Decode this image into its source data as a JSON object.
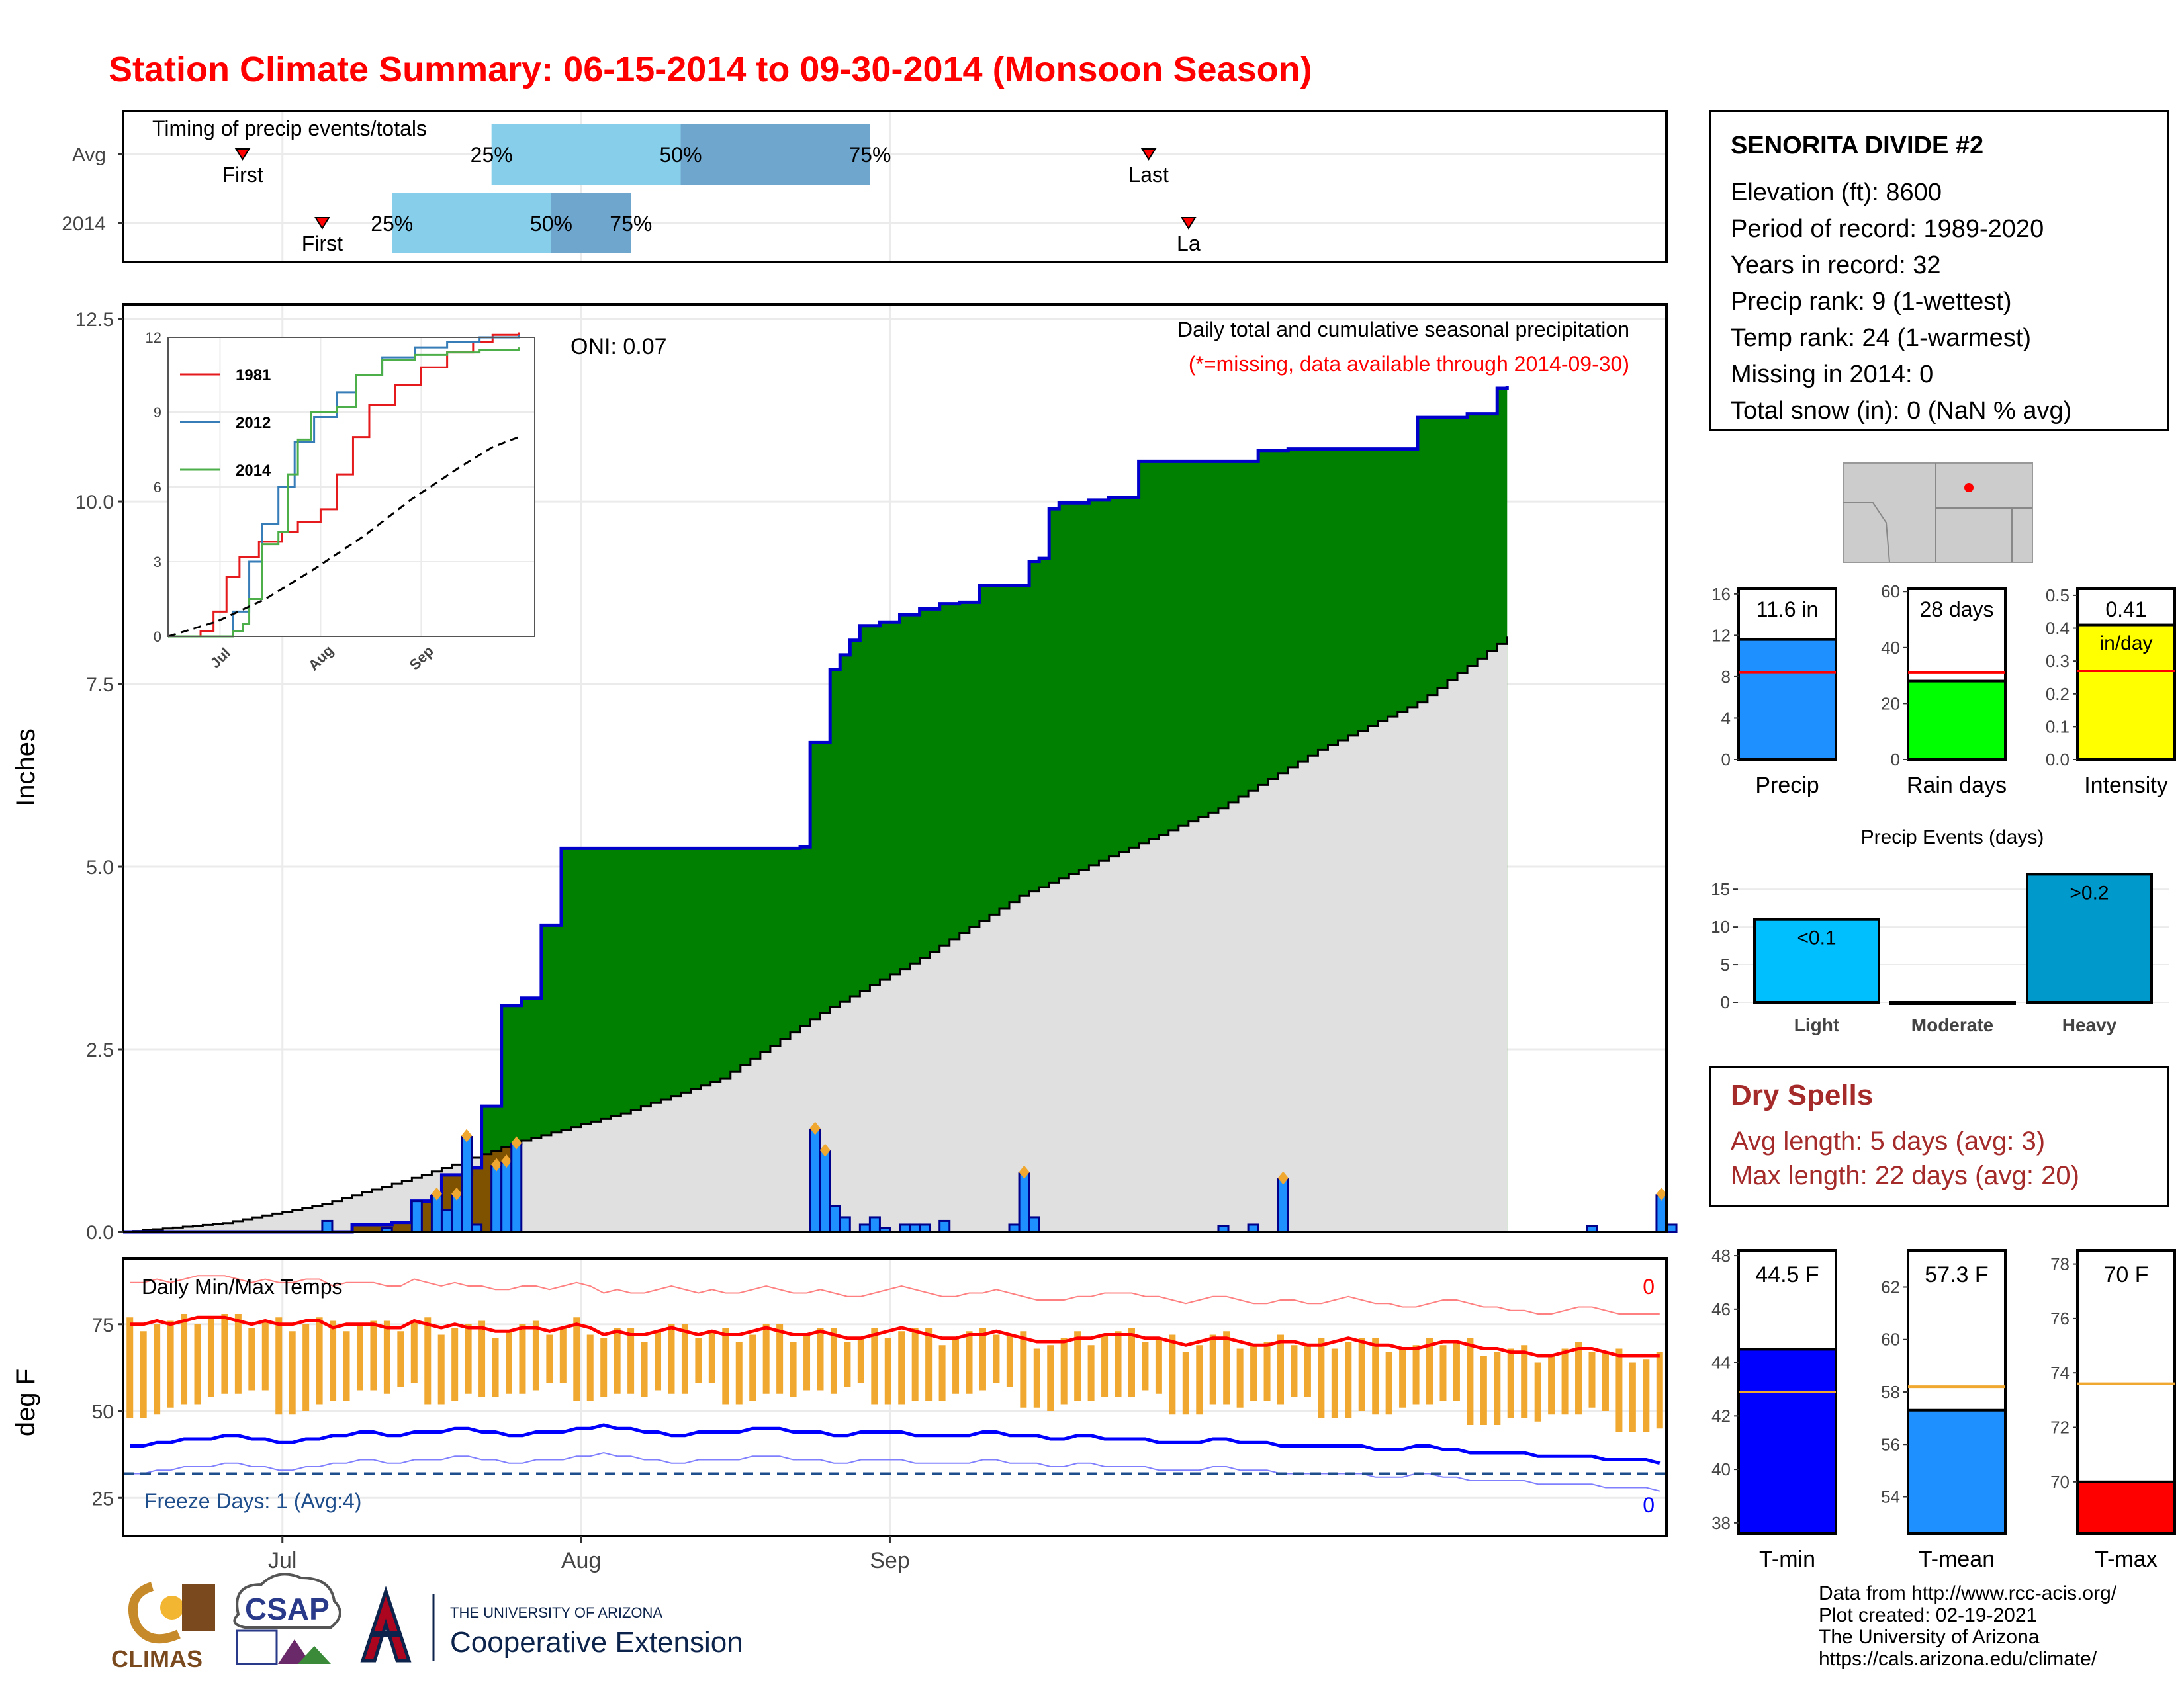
{
  "title": "Station Climate Summary: 06-15-2014 to 09-30-2014 (Monsoon Season)",
  "colors": {
    "title": "#ff0000",
    "precip_bar": "#1e90ff",
    "green_fill": "#008000",
    "brown_fill": "#7f5200",
    "avg_fill": "#e0e0e0",
    "tmin": "#0000ff",
    "tmax": "#ff0000",
    "range_bar": "#f0a830",
    "quartile_light": "#87ceeb",
    "quartile_dark": "#6fa6cd",
    "dry_spell_text": "#a52a2a"
  },
  "timing": {
    "label": "Timing of precip events/totals",
    "rows": [
      {
        "label": "Avg",
        "first_label": "First",
        "last_label": "Last",
        "first_day": 12,
        "last_day": 103,
        "q25_label": "25%",
        "q50_label": "50%",
        "q75_label": "75%",
        "q25_day": 37,
        "q50_day": 56,
        "q75_day": 75
      },
      {
        "label": "2014",
        "first_label": "First",
        "last_label": "La",
        "first_day": 20,
        "last_day": 107,
        "q25_label": "25%",
        "q50_label": "50%",
        "q75_label": "75%",
        "q25_day": 27,
        "q50_day": 43,
        "q75_day": 51
      }
    ]
  },
  "precip_panel": {
    "ylabel": "Inches",
    "oni_label": "ONI: 0.07",
    "desc_line1": "Daily total and cumulative seasonal precipitation",
    "desc_line2": "(*=missing, data available through 2014-09-30)",
    "yticks": [
      "0.0",
      "2.5",
      "5.0",
      "7.5",
      "10.0",
      "12.5"
    ]
  },
  "inset": {
    "yticks": [
      "0",
      "3",
      "6",
      "9",
      "12"
    ],
    "xticks": [
      "Jul",
      "Aug",
      "Sep"
    ],
    "legend": [
      {
        "name": "1981",
        "color": "#e41a1c"
      },
      {
        "name": "2012",
        "color": "#377eb8"
      },
      {
        "name": "2014",
        "color": "#4daf4a"
      }
    ]
  },
  "temp_panel": {
    "ylabel": "deg F",
    "label": "Daily Min/Max Temps",
    "freeze_label": "Freeze Days: 1 (Avg:4)",
    "max_count_label": "0",
    "min_count_label": "0",
    "yticks": [
      "25",
      "50",
      "75"
    ],
    "xticks": [
      "Jul",
      "Aug",
      "Sep"
    ],
    "freeze_line": 32
  },
  "station": {
    "name": "SENORITA DIVIDE #2",
    "lines": [
      "Elevation (ft): 8600",
      "Period of record: 1989-2020",
      "Years in record: 32",
      "Precip rank: 9 (1-wettest)",
      "Temp rank: 24 (1-warmest)",
      "Missing in 2014: 0",
      "Total snow (in): 0 (NaN % avg)"
    ]
  },
  "summary_bars": [
    {
      "xlabel": "Precip",
      "value_label": "11.6 in",
      "value": 11.6,
      "avg": 8.4,
      "ymax": 16.5,
      "ticks": [
        "0",
        "4",
        "8",
        "12",
        "16"
      ],
      "tickvals": [
        0,
        4,
        8,
        12,
        16
      ],
      "color": "#1e90ff"
    },
    {
      "xlabel": "Rain days",
      "value_label": "28 days",
      "value": 28,
      "avg": 31,
      "ymax": 61,
      "ticks": [
        "0",
        "20",
        "40",
        "60"
      ],
      "tickvals": [
        0,
        20,
        40,
        60
      ],
      "color": "#00ff00"
    },
    {
      "xlabel": "Intensity",
      "value_label": "0.41",
      "value_label2": "in/day",
      "value": 0.41,
      "avg": 0.27,
      "ymax": 0.52,
      "ticks": [
        "0.0",
        "0.1",
        "0.2",
        "0.3",
        "0.4",
        "0.5"
      ],
      "tickvals": [
        0,
        0.1,
        0.2,
        0.3,
        0.4,
        0.5
      ],
      "color": "#ffff00"
    }
  ],
  "events": {
    "title": "Precip Events (days)",
    "categories": [
      "Light",
      "Moderate",
      "Heavy"
    ],
    "values": [
      11,
      0,
      17
    ],
    "bar_labels": [
      "<0.1",
      "",
      ">0.2"
    ],
    "colors": [
      "#00bfff",
      "#00bfff",
      "#0099cc"
    ],
    "yticks": [
      "0",
      "5",
      "10",
      "15"
    ]
  },
  "dry_spells": {
    "title": "Dry Spells",
    "avg_line": "Avg length: 5 days (avg: 3)",
    "max_line": "Max length: 22 days (avg: 20)"
  },
  "temp_bars": [
    {
      "xlabel": "T-min",
      "value_label": "44.5 F",
      "value": 44.5,
      "avg": 42.9,
      "ymin": 37.6,
      "ymax": 48.2,
      "ticks": [
        "38",
        "40",
        "42",
        "44",
        "46",
        "48"
      ],
      "tickvals": [
        38,
        40,
        42,
        44,
        46,
        48
      ],
      "color": "#0000ff"
    },
    {
      "xlabel": "T-mean",
      "value_label": "57.3 F",
      "value": 57.3,
      "avg": 58.2,
      "ymin": 52.6,
      "ymax": 63.4,
      "ticks": [
        "54",
        "56",
        "58",
        "60",
        "62"
      ],
      "tickvals": [
        54,
        56,
        58,
        60,
        62
      ],
      "color": "#1e90ff"
    },
    {
      "xlabel": "T-max",
      "value_label": "70 F",
      "value": 70,
      "avg": 73.6,
      "ymin": 68.1,
      "ymax": 78.5,
      "ticks": [
        "70",
        "72",
        "74",
        "76",
        "78"
      ],
      "tickvals": [
        70,
        72,
        74,
        76,
        78
      ],
      "color": "#ff0000"
    }
  ],
  "logos": {
    "climas": "CLIMAS",
    "csap": "CSAP",
    "ua_small": "THE UNIVERSITY OF ARIZONA",
    "ua_big": "Cooperative Extension"
  },
  "credits": [
    "Data from http://www.rcc-acis.org/",
    "Plot created: 02-19-2021",
    "The University of Arizona",
    "https://cals.arizona.edu/climate/"
  ],
  "chart_data": [
    {
      "type": "area",
      "title": "Daily total and cumulative seasonal precipitation",
      "ylabel": "Inches",
      "ylim": [
        0,
        12.7
      ],
      "xlim": [
        "2014-06-15",
        "2014-09-30"
      ],
      "series": [
        {
          "name": "",
          "values": [
            [
              0,
              0
            ],
            [
              20,
              0
            ],
            [
              23,
              0.1
            ],
            [
              27,
              0.13
            ],
            [
              29,
              0.42
            ],
            [
              31,
              0.48
            ],
            [
              32,
              0.78
            ],
            [
              35,
              0.88
            ],
            [
              36,
              1.72
            ],
            [
              38,
              3.1
            ],
            [
              40,
              3.2
            ],
            [
              42,
              4.2
            ],
            [
              44,
              5.25
            ],
            [
              68,
              5.27
            ],
            [
              69,
              6.7
            ],
            [
              71,
              7.7
            ],
            [
              72,
              7.9
            ],
            [
              73,
              8.1
            ],
            [
              74,
              8.3
            ],
            [
              76,
              8.35
            ],
            [
              78,
              8.45
            ],
            [
              80,
              8.53
            ],
            [
              82,
              8.6
            ],
            [
              84,
              8.62
            ],
            [
              86,
              8.85
            ],
            [
              90,
              8.85
            ],
            [
              91,
              9.18
            ],
            [
              92,
              9.22
            ],
            [
              93,
              9.9
            ],
            [
              94,
              9.98
            ],
            [
              97,
              10.02
            ],
            [
              99,
              10.05
            ],
            [
              102,
              10.55
            ],
            [
              112,
              10.55
            ],
            [
              114,
              10.7
            ],
            [
              117,
              10.72
            ],
            [
              119,
              10.72
            ],
            [
              127,
              10.72
            ],
            [
              130,
              11.15
            ],
            [
              135,
              11.2
            ],
            [
              138,
              11.55
            ],
            [
              139,
              11.58
            ]
          ]
        },
        {
          "name": "",
          "values": [
            [
              0,
              0
            ],
            [
              10,
              0.12
            ],
            [
              20,
              0.38
            ],
            [
              30,
              0.78
            ],
            [
              40,
              1.25
            ],
            [
              50,
              1.62
            ],
            [
              60,
              2.1
            ],
            [
              70,
              3.0
            ],
            [
              80,
              3.75
            ],
            [
              90,
              4.6
            ],
            [
              100,
              5.2
            ],
            [
              110,
              5.8
            ],
            [
              120,
              6.6
            ],
            [
              130,
              7.25
            ],
            [
              139,
              8.15
            ]
          ]
        }
      ],
      "daily_bars": [
        [
          20,
          0.15
        ],
        [
          26,
          0.05
        ],
        [
          29,
          0.42
        ],
        [
          31,
          0.5
        ],
        [
          32,
          0.3
        ],
        [
          33,
          0.5
        ],
        [
          34,
          1.3
        ],
        [
          35,
          0.1
        ],
        [
          37,
          0.9
        ],
        [
          38,
          0.95
        ],
        [
          39,
          1.2
        ],
        [
          69,
          1.4
        ],
        [
          70,
          1.1
        ],
        [
          71,
          0.35
        ],
        [
          72,
          0.2
        ],
        [
          74,
          0.1
        ],
        [
          75,
          0.2
        ],
        [
          76,
          0.05
        ],
        [
          78,
          0.1
        ],
        [
          79,
          0.1
        ],
        [
          80,
          0.1
        ],
        [
          82,
          0.15
        ],
        [
          89,
          0.1
        ],
        [
          90,
          0.8
        ],
        [
          91,
          0.2
        ],
        [
          110,
          0.08
        ],
        [
          113,
          0.1
        ],
        [
          116,
          0.72
        ],
        [
          147,
          0.08
        ],
        [
          154,
          0.5
        ],
        [
          155,
          0.1
        ]
      ]
    },
    {
      "type": "line",
      "title": "",
      "ylim": [
        0,
        12
      ],
      "xticks": [
        "Jul",
        "Aug",
        "Sep"
      ],
      "series": [
        {
          "name": "1981",
          "values": [
            [
              0,
              0
            ],
            [
              10,
              0.2
            ],
            [
              14,
              1.0
            ],
            [
              18,
              2.4
            ],
            [
              22,
              3.2
            ],
            [
              28,
              3.8
            ],
            [
              35,
              4.2
            ],
            [
              40,
              4.6
            ],
            [
              47,
              5.1
            ],
            [
              52,
              6.5
            ],
            [
              57,
              8.0
            ],
            [
              62,
              9.3
            ],
            [
              70,
              10.1
            ],
            [
              78,
              10.8
            ],
            [
              86,
              11.4
            ],
            [
              94,
              11.8
            ],
            [
              100,
              12.1
            ],
            [
              108,
              12.2
            ]
          ]
        },
        {
          "name": "2012",
          "values": [
            [
              0,
              0
            ],
            [
              15,
              0
            ],
            [
              20,
              1.0
            ],
            [
              25,
              3.0
            ],
            [
              29,
              4.5
            ],
            [
              34,
              6.0
            ],
            [
              39,
              7.8
            ],
            [
              45,
              8.8
            ],
            [
              52,
              9.8
            ],
            [
              58,
              10.5
            ],
            [
              66,
              11.2
            ],
            [
              76,
              11.6
            ],
            [
              86,
              11.8
            ],
            [
              96,
              12.0
            ],
            [
              108,
              12.1
            ]
          ]
        },
        {
          "name": "2014",
          "values": [
            [
              0,
              0
            ],
            [
              20,
              0.2
            ],
            [
              23,
              0.5
            ],
            [
              25,
              1.5
            ],
            [
              29,
              3.7
            ],
            [
              34,
              4.2
            ],
            [
              37,
              6.5
            ],
            [
              40,
              7.9
            ],
            [
              44,
              9.0
            ],
            [
              52,
              9.2
            ],
            [
              58,
              10.5
            ],
            [
              66,
              11.1
            ],
            [
              76,
              11.3
            ],
            [
              86,
              11.4
            ],
            [
              96,
              11.5
            ],
            [
              108,
              11.6
            ]
          ]
        },
        {
          "name": "",
          "values": [
            [
              0,
              0
            ],
            [
              15,
              0.6
            ],
            [
              30,
              1.5
            ],
            [
              45,
              2.7
            ],
            [
              60,
              4.0
            ],
            [
              75,
              5.5
            ],
            [
              90,
              6.8
            ],
            [
              100,
              7.6
            ],
            [
              108,
              8.0
            ]
          ]
        }
      ]
    },
    {
      "type": "bar",
      "title": "Daily Min/Max Temps",
      "ylabel": "deg F",
      "ylim": [
        14,
        94
      ],
      "xlim": [
        "2014-06-15",
        "2014-09-30"
      ],
      "series": [
        {
          "name": "",
          "values": [
            75,
            75,
            76,
            75,
            76,
            77,
            77,
            77,
            76,
            75,
            76,
            75,
            75,
            76,
            76,
            74,
            75,
            75,
            75,
            74,
            74,
            76,
            75,
            74,
            75,
            74,
            74,
            73,
            73,
            74,
            74,
            73,
            74,
            75,
            74,
            72,
            73,
            72,
            72,
            73,
            74,
            73,
            72,
            73,
            72,
            72,
            73,
            74,
            73,
            72,
            72,
            73,
            72,
            71,
            71,
            72,
            73,
            74,
            73,
            72,
            71,
            71,
            72,
            72,
            73,
            72,
            71,
            70,
            70,
            70,
            71,
            71,
            72,
            72,
            72,
            71,
            71,
            70,
            69,
            70,
            71,
            71,
            70,
            69,
            69,
            70,
            70,
            69,
            69,
            70,
            71,
            70,
            69,
            69,
            68,
            68,
            69,
            70,
            70,
            69,
            68,
            68,
            67,
            67,
            66,
            66,
            67,
            68,
            68,
            67,
            66,
            66,
            66,
            66
          ]
        },
        {
          "name": "",
          "values": [
            40,
            40,
            41,
            41,
            42,
            42,
            42,
            43,
            43,
            42,
            42,
            41,
            41,
            42,
            42,
            43,
            43,
            44,
            44,
            43,
            43,
            44,
            44,
            44,
            45,
            45,
            44,
            44,
            43,
            43,
            44,
            44,
            44,
            45,
            45,
            46,
            45,
            45,
            44,
            44,
            43,
            43,
            44,
            44,
            44,
            44,
            45,
            45,
            45,
            44,
            44,
            44,
            43,
            43,
            44,
            44,
            44,
            44,
            43,
            43,
            43,
            43,
            43,
            44,
            44,
            43,
            43,
            43,
            42,
            42,
            43,
            43,
            42,
            42,
            42,
            42,
            41,
            41,
            41,
            41,
            42,
            42,
            41,
            41,
            41,
            40,
            40,
            40,
            40,
            40,
            40,
            40,
            39,
            39,
            39,
            40,
            40,
            39,
            39,
            38,
            38,
            38,
            38,
            38,
            37,
            37,
            37,
            37,
            37,
            36,
            36,
            36,
            36,
            35
          ]
        }
      ]
    }
  ]
}
